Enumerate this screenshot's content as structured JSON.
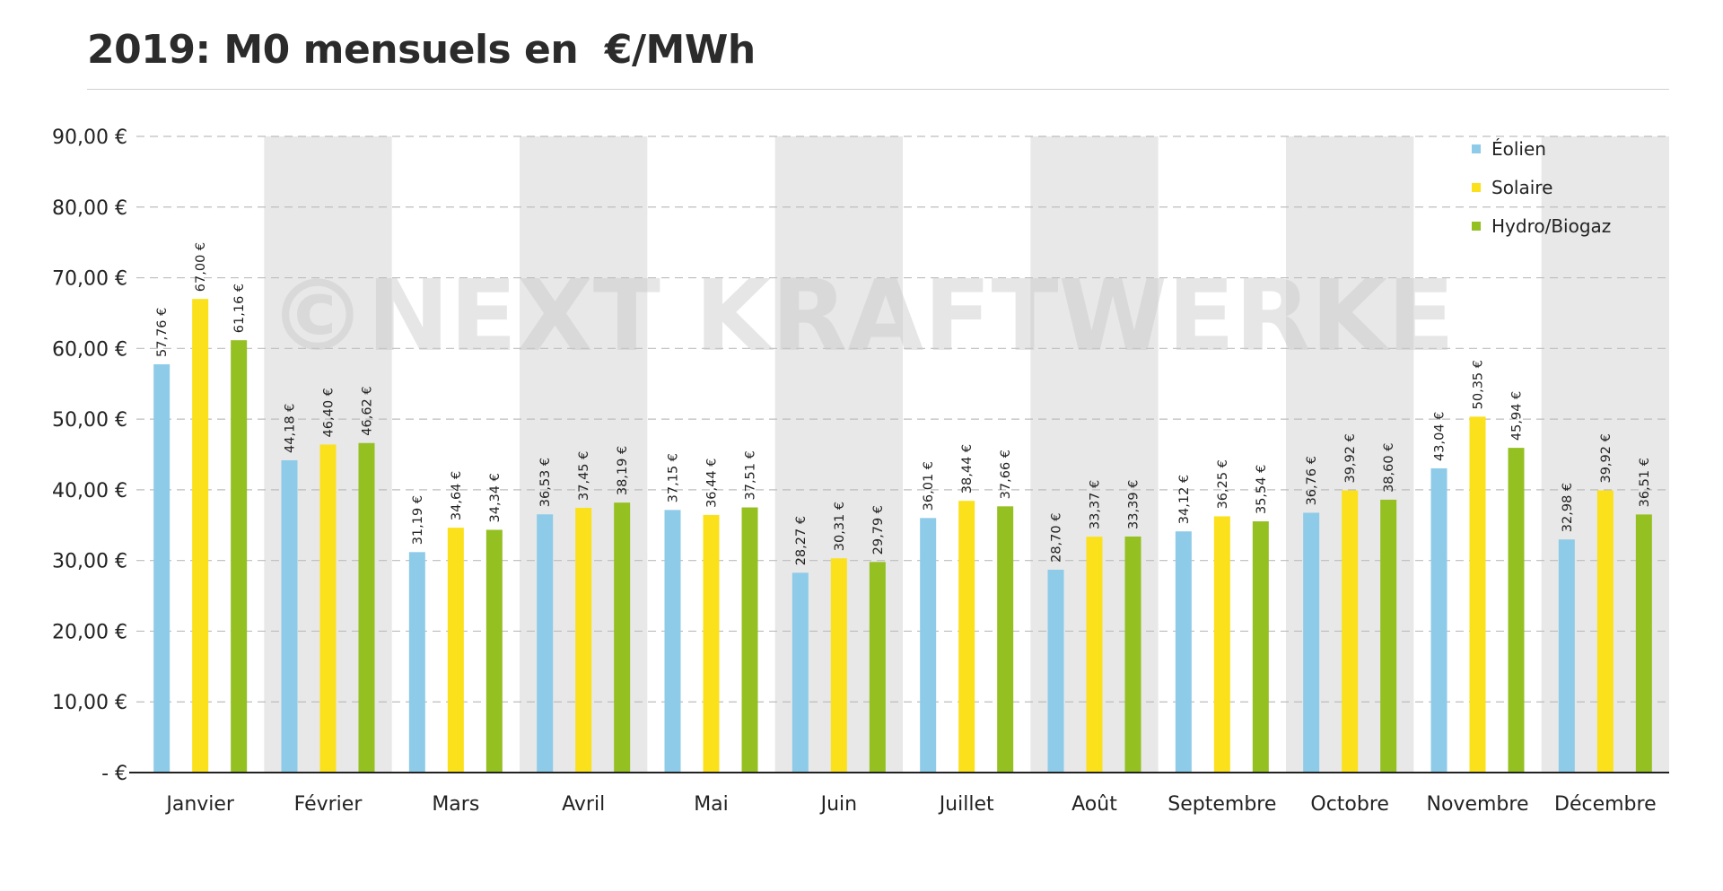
{
  "title": "2019: M0 mensuels en  €/MWh",
  "watermark": "©NEXT KRAFTWERKE",
  "colors": {
    "eolien": "#8ecbe8",
    "solaire": "#fbe01c",
    "hydro": "#94c021",
    "band": "#e8e8e8",
    "grid": "#bdbdbd",
    "axis": "#222222"
  },
  "chart_data": {
    "type": "bar",
    "title": "2019: M0 mensuels en  €/MWh",
    "xlabel": "",
    "ylabel": "",
    "ylim": [
      0,
      90
    ],
    "grid": true,
    "legend_position": "top-right",
    "yticks": [
      {
        "value": 0,
        "label": "- €"
      },
      {
        "value": 10,
        "label": "10,00 €"
      },
      {
        "value": 20,
        "label": "20,00 €"
      },
      {
        "value": 30,
        "label": "30,00 €"
      },
      {
        "value": 40,
        "label": "40,00 €"
      },
      {
        "value": 50,
        "label": "50,00 €"
      },
      {
        "value": 60,
        "label": "60,00 €"
      },
      {
        "value": 70,
        "label": "70,00 €"
      },
      {
        "value": 80,
        "label": "80,00 €"
      },
      {
        "value": 90,
        "label": "90,00 €"
      }
    ],
    "categories": [
      "Janvier",
      "Février",
      "Mars",
      "Avril",
      "Mai",
      "Juin",
      "Juillet",
      "Août",
      "Septembre",
      "Octobre",
      "Novembre",
      "Décembre"
    ],
    "series": [
      {
        "name": "Éolien",
        "color": "#8ecbe8",
        "values": [
          57.76,
          44.18,
          31.19,
          36.53,
          37.15,
          28.27,
          36.01,
          28.7,
          34.12,
          36.76,
          43.04,
          32.98
        ],
        "labels": [
          "57,76 €",
          "44,18 €",
          "31,19 €",
          "36,53 €",
          "37,15 €",
          "28,27 €",
          "36,01 €",
          "28,70 €",
          "34,12 €",
          "36,76 €",
          "43,04 €",
          "32,98 €"
        ]
      },
      {
        "name": "Solaire",
        "color": "#fbe01c",
        "values": [
          67.0,
          46.4,
          34.64,
          37.45,
          36.44,
          30.31,
          38.44,
          33.37,
          36.25,
          39.92,
          50.35,
          39.92
        ],
        "labels": [
          "67,00 €",
          "46,40 €",
          "34,64 €",
          "37,45 €",
          "36,44 €",
          "30,31 €",
          "38,44 €",
          "33,37 €",
          "36,25 €",
          "39,92 €",
          "50,35 €",
          "39,92 €"
        ]
      },
      {
        "name": "Hydro/Biogaz",
        "color": "#94c021",
        "values": [
          61.16,
          46.62,
          34.34,
          38.19,
          37.51,
          29.79,
          37.66,
          33.39,
          35.54,
          38.6,
          45.94,
          36.51
        ],
        "labels": [
          "61,16 €",
          "46,62 €",
          "34,34 €",
          "38,19 €",
          "37,51 €",
          "29,79 €",
          "37,66 €",
          "33,39 €",
          "35,54 €",
          "38,60 €",
          "45,94 €",
          "36,51 €"
        ]
      }
    ]
  }
}
